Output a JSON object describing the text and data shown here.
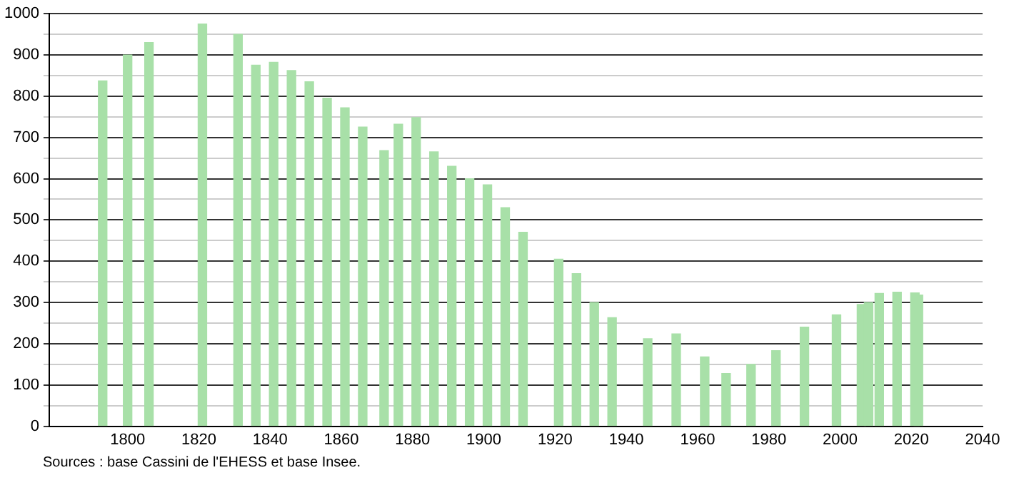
{
  "chart_data": {
    "type": "bar",
    "x": [
      1793,
      1800,
      1806,
      1821,
      1831,
      1836,
      1841,
      1846,
      1851,
      1856,
      1861,
      1866,
      1872,
      1876,
      1881,
      1886,
      1891,
      1896,
      1901,
      1906,
      1911,
      1921,
      1926,
      1931,
      1936,
      1946,
      1954,
      1962,
      1968,
      1975,
      1982,
      1990,
      1999,
      2006,
      2008,
      2011,
      2016,
      2021,
      2022
    ],
    "values": [
      837,
      900,
      930,
      975,
      950,
      875,
      882,
      862,
      835,
      795,
      772,
      725,
      668,
      732,
      748,
      665,
      630,
      600,
      585,
      530,
      470,
      405,
      370,
      300,
      263,
      212,
      224,
      168,
      128,
      150,
      183,
      240,
      270,
      295,
      300,
      322,
      325,
      323,
      318
    ],
    "color": "#a8e0a8",
    "xlim": [
      1778,
      2040
    ],
    "xticks": [
      1800,
      1820,
      1840,
      1860,
      1880,
      1900,
      1920,
      1940,
      1960,
      1980,
      2000,
      2020,
      2040
    ],
    "ylim": [
      0,
      1000
    ],
    "yticks": [
      0,
      {
        "value": 50,
        "label": null
      },
      100,
      {
        "value": 150,
        "label": null
      },
      200,
      {
        "value": 250,
        "label": null
      },
      300,
      {
        "value": 350,
        "label": null
      },
      400,
      {
        "value": 450,
        "label": null
      },
      500,
      {
        "value": 550,
        "label": null
      },
      600,
      {
        "value": 650,
        "label": null
      },
      700,
      {
        "value": 750,
        "label": null
      },
      800,
      {
        "value": 850,
        "label": null
      },
      900,
      {
        "value": 950,
        "label": null
      },
      1000
    ],
    "grid": "y",
    "annotations": [
      "Sources : base Cassini de l'EHESS et base Insee."
    ]
  }
}
